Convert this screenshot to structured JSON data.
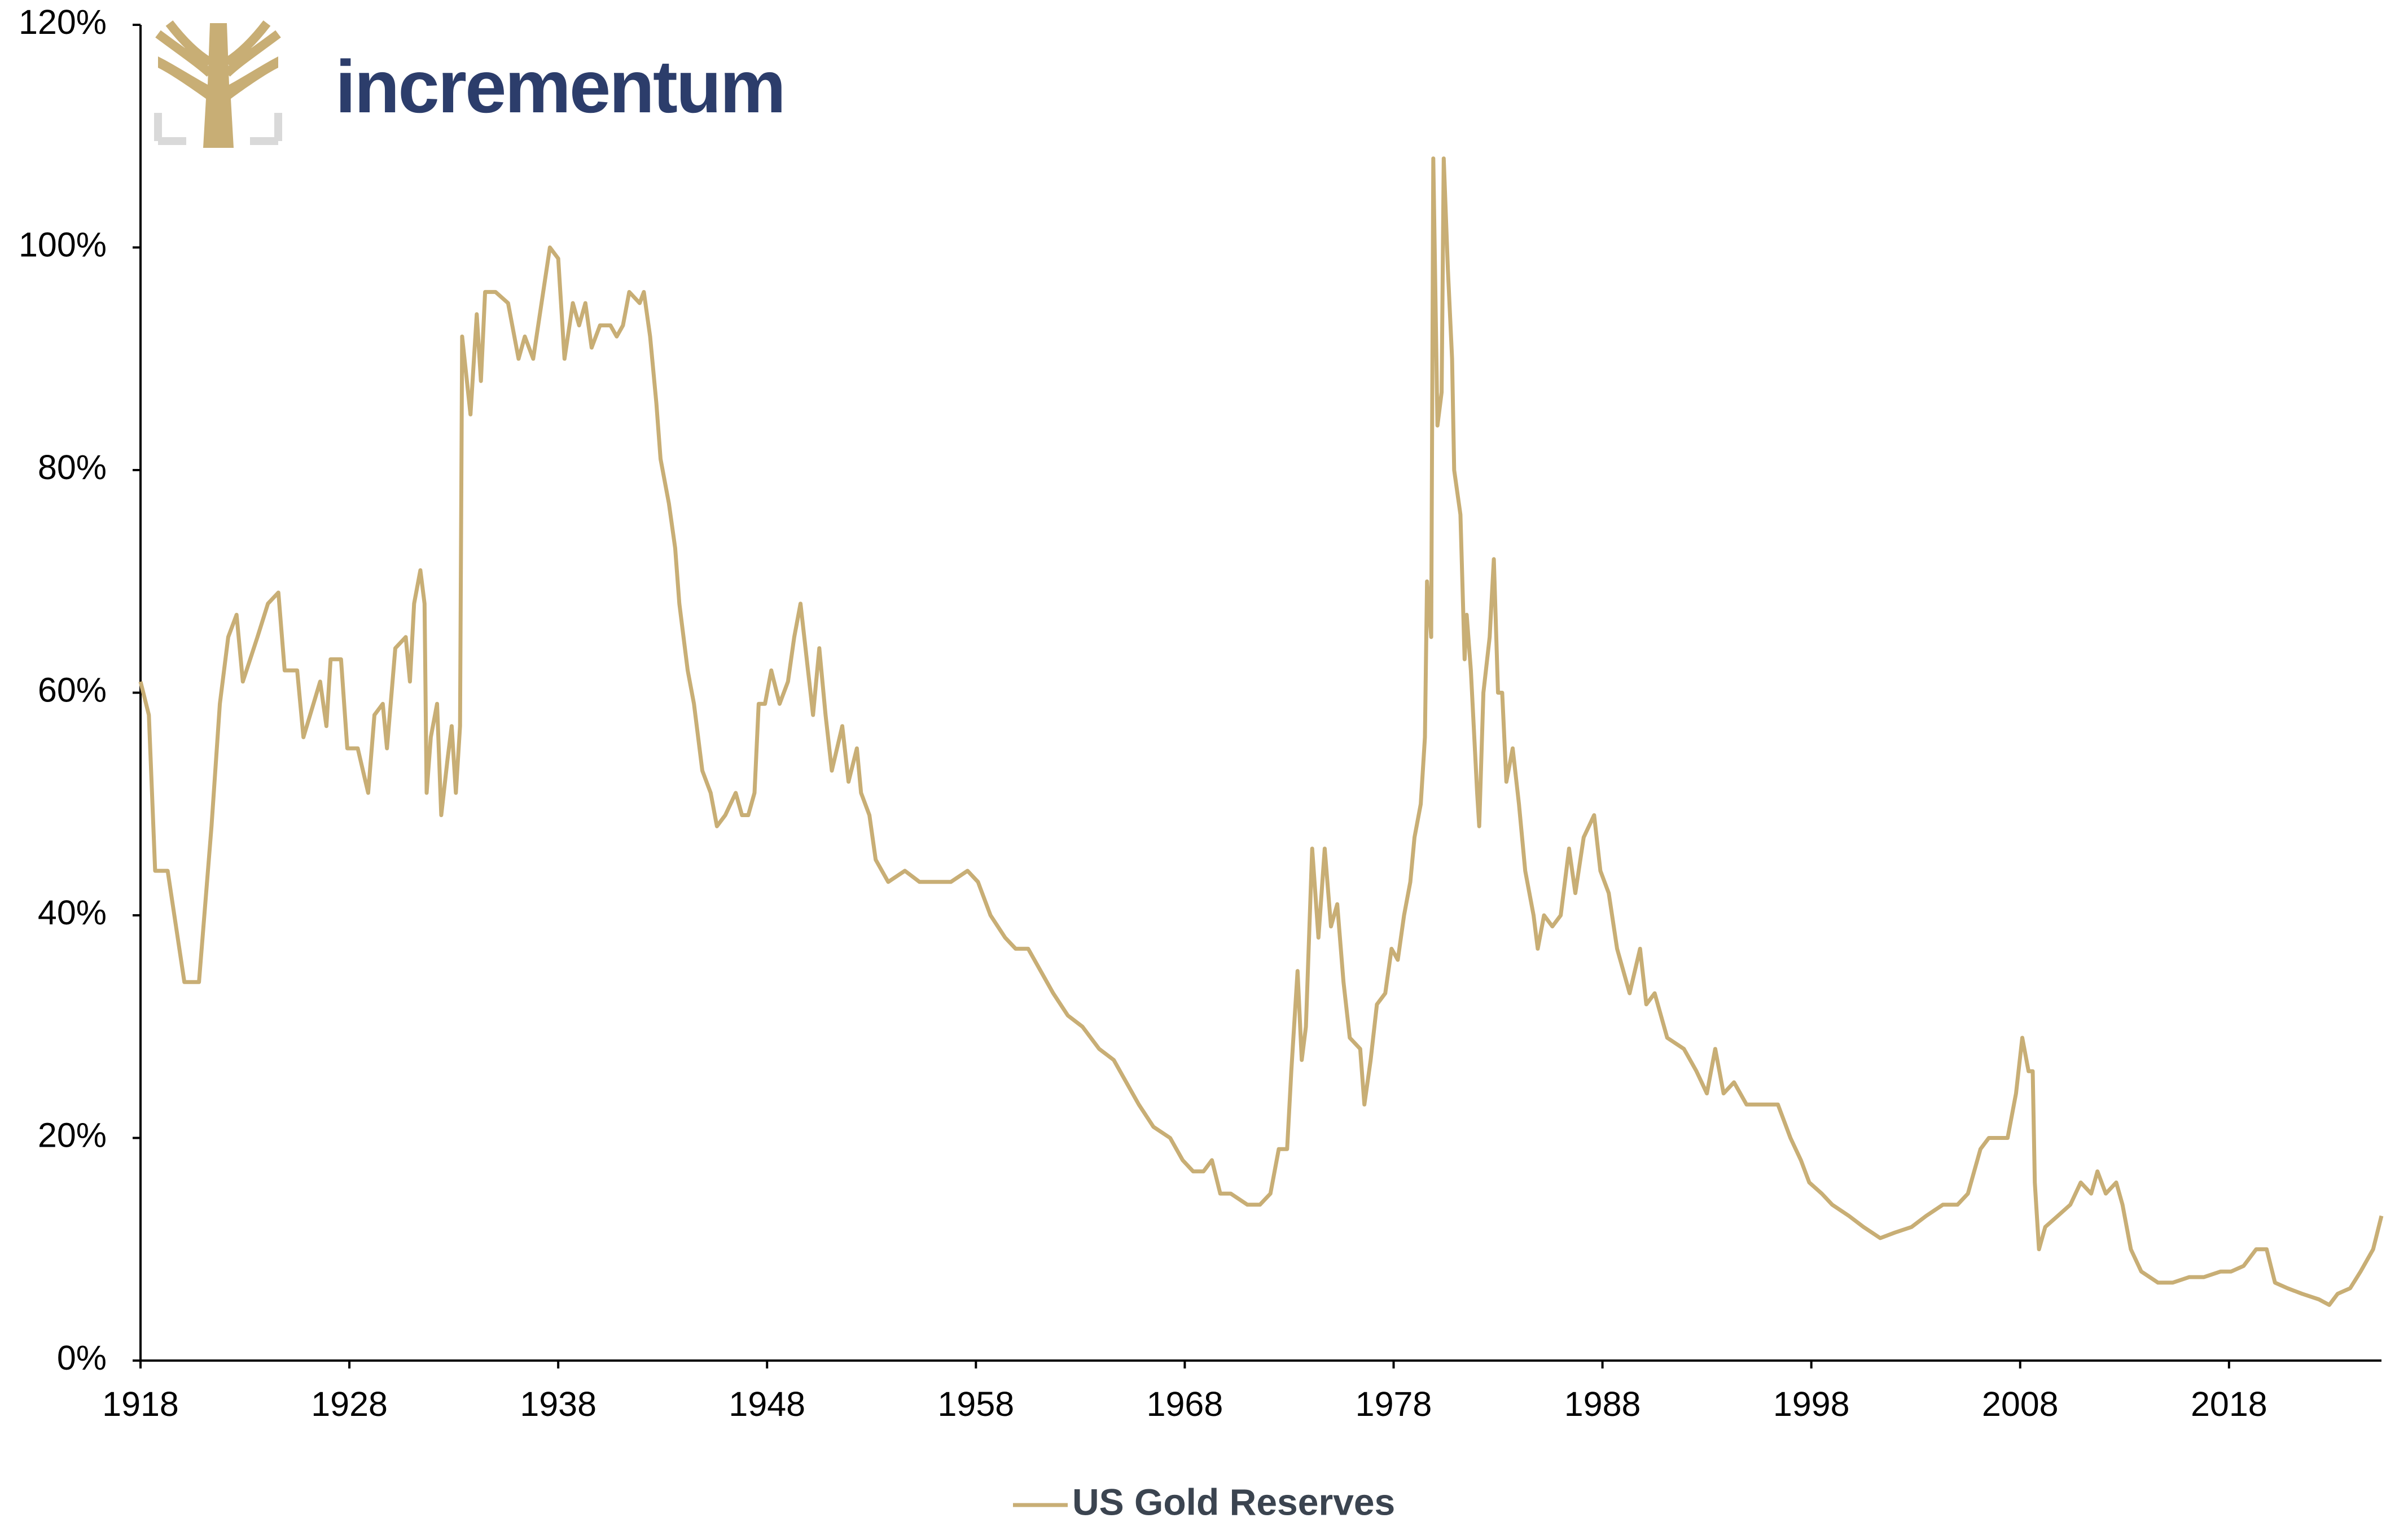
{
  "chart_data": {
    "type": "line",
    "logo_text": "incrementum",
    "x": [
      1918.0,
      1918.4,
      1918.7,
      1919.3,
      1920.1,
      1920.8,
      1921.4,
      1921.8,
      1922.2,
      1922.6,
      1922.9,
      1923.6,
      1924.1,
      1924.6,
      1924.9,
      1925.5,
      1925.8,
      1926.6,
      1926.9,
      1927.1,
      1927.6,
      1927.9,
      1928.4,
      1928.9,
      1929.2,
      1929.6,
      1929.8,
      1930.2,
      1930.7,
      1930.9,
      1931.1,
      1931.4,
      1931.6,
      1931.7,
      1931.9,
      1932.2,
      1932.4,
      1932.7,
      1932.9,
      1933.1,
      1933.3,
      1933.4,
      1933.8,
      1934.1,
      1934.3,
      1934.5,
      1935.0,
      1935.6,
      1936.1,
      1936.4,
      1936.8,
      1937.2,
      1937.6,
      1938.0,
      1938.3,
      1938.7,
      1939.0,
      1939.3,
      1939.6,
      1940.0,
      1940.5,
      1940.8,
      1941.1,
      1941.4,
      1941.9,
      1942.1,
      1942.4,
      1942.7,
      1942.9,
      1943.3,
      1943.6,
      1943.8,
      1944.2,
      1944.5,
      1944.9,
      1945.3,
      1945.6,
      1946.0,
      1946.5,
      1946.8,
      1947.1,
      1947.4,
      1947.6,
      1947.9,
      1948.2,
      1948.6,
      1949.0,
      1949.3,
      1949.6,
      1949.9,
      1950.2,
      1950.5,
      1950.8,
      1951.1,
      1951.6,
      1951.9,
      1952.3,
      1952.5,
      1952.9,
      1953.2,
      1953.8,
      1954.6,
      1955.3,
      1956.1,
      1956.8,
      1957.6,
      1958.1,
      1958.7,
      1959.4,
      1959.9,
      1960.5,
      1961.1,
      1961.7,
      1962.4,
      1963.1,
      1963.9,
      1964.6,
      1965.2,
      1965.8,
      1966.5,
      1967.3,
      1967.9,
      1968.4,
      1968.9,
      1969.3,
      1969.7,
      1970.2,
      1971.0,
      1971.6,
      1972.1,
      1972.5,
      1972.9,
      1973.1,
      1973.4,
      1973.6,
      1973.8,
      1974.1,
      1974.4,
      1974.7,
      1975.0,
      1975.3,
      1975.6,
      1975.9,
      1976.4,
      1976.6,
      1976.9,
      1977.2,
      1977.6,
      1977.9,
      1978.2,
      1978.5,
      1978.8,
      1979.0,
      1979.3,
      1979.5,
      1979.6,
      1979.8,
      1979.9,
      1980.1,
      1980.3,
      1980.4,
      1980.6,
      1980.8,
      1980.9,
      1981.2,
      1981.4,
      1981.5,
      1981.7,
      1982.0,
      1982.1,
      1982.3,
      1982.6,
      1982.8,
      1983.0,
      1983.2,
      1983.4,
      1983.7,
      1984.0,
      1984.3,
      1984.7,
      1984.9,
      1985.2,
      1985.6,
      1986.0,
      1986.4,
      1986.7,
      1987.1,
      1987.6,
      1987.9,
      1988.3,
      1988.7,
      1989.0,
      1989.3,
      1989.8,
      1990.1,
      1990.5,
      1991.1,
      1991.9,
      1992.5,
      1993.0,
      1993.4,
      1993.8,
      1994.3,
      1994.9,
      1995.6,
      1996.4,
      1997.0,
      1997.5,
      1997.9,
      1998.5,
      1999.0,
      1999.8,
      2000.5,
      2001.3,
      2002.0,
      2002.8,
      2003.5,
      2004.3,
      2005.0,
      2005.5,
      2006.1,
      2006.5,
      2007.0,
      2007.4,
      2007.8,
      2008.1,
      2008.4,
      2008.6,
      2008.7,
      2008.9,
      2009.2,
      2009.8,
      2010.4,
      2010.9,
      2011.4,
      2011.7,
      2012.1,
      2012.6,
      2012.9,
      2013.3,
      2013.8,
      2014.6,
      2015.3,
      2016.1,
      2016.8,
      2017.6,
      2018.1,
      2018.7,
      2019.3,
      2019.8,
      2020.2,
      2020.8,
      2021.5,
      2022.3,
      2022.8,
      2023.2,
      2023.8,
      2024.3,
      2024.9,
      2025.3
    ],
    "series": [
      {
        "name": "US Gold Reserves",
        "color": "#c8ae75",
        "values": [
          61,
          58,
          44,
          44,
          34,
          34,
          48,
          59,
          65,
          67,
          61,
          65,
          68,
          69,
          62,
          62,
          56,
          61,
          57,
          63,
          63,
          55,
          55,
          51,
          58,
          59,
          55,
          64,
          65,
          61,
          68,
          71,
          68,
          51,
          56,
          59,
          49,
          54,
          57,
          51,
          57,
          92,
          85,
          94,
          88,
          96,
          96,
          95,
          90,
          92,
          90,
          95,
          100,
          99,
          90,
          95,
          93,
          95,
          91,
          93,
          93,
          92,
          93,
          96,
          95,
          96,
          92,
          86,
          81,
          77,
          73,
          68,
          62,
          59,
          53,
          51,
          48,
          49,
          51,
          49,
          49,
          51,
          59,
          59,
          62,
          59,
          61,
          65,
          68,
          63,
          58,
          64,
          58,
          53,
          57,
          52,
          55,
          51,
          49,
          45,
          43,
          44,
          43,
          43,
          43,
          44,
          43,
          40,
          38,
          37,
          37,
          35,
          33,
          31,
          30,
          28,
          27,
          25,
          23,
          21,
          20,
          18,
          17,
          17,
          18,
          15,
          15,
          14,
          14,
          15,
          19,
          19,
          26,
          35,
          27,
          30,
          46,
          38,
          46,
          39,
          41,
          34,
          29,
          28,
          23,
          27,
          32,
          33,
          37,
          36,
          40,
          43,
          47,
          50,
          56,
          70,
          65,
          108,
          84,
          87,
          108,
          98,
          90,
          80,
          76,
          63,
          67,
          62,
          51,
          48,
          60,
          65,
          72,
          60,
          60,
          52,
          55,
          50,
          44,
          40,
          37,
          40,
          39,
          40,
          46,
          42,
          47,
          49,
          44,
          42,
          37,
          35,
          33,
          37,
          32,
          33,
          29,
          28,
          26,
          24,
          28,
          24,
          25,
          23,
          23,
          23,
          20,
          18,
          16,
          15,
          14,
          13,
          12,
          11,
          11.5,
          12,
          13,
          14,
          14,
          15,
          19,
          20,
          20,
          20,
          24,
          29,
          26,
          26,
          16,
          10,
          12,
          13,
          14,
          16,
          15,
          17,
          15,
          16,
          14,
          10,
          8,
          7,
          7,
          7.5,
          7.5,
          8,
          8,
          8.5,
          10,
          10,
          7,
          6.5,
          6,
          5.5,
          5,
          6,
          6.5,
          8,
          10,
          13
        ]
      }
    ],
    "xlim": [
      1918,
      2025.3
    ],
    "xticks": [
      1918,
      1928,
      1938,
      1948,
      1958,
      1968,
      1978,
      1988,
      1998,
      2008,
      2018
    ],
    "ylim": [
      0,
      120
    ],
    "yticks": [
      {
        "value": 0,
        "label": "0%"
      },
      {
        "value": 20,
        "label": "20%"
      },
      {
        "value": 40,
        "label": "40%"
      },
      {
        "value": 60,
        "label": "60%"
      },
      {
        "value": 80,
        "label": "80%"
      },
      {
        "value": 100,
        "label": "100%"
      },
      {
        "value": 120,
        "label": "120%"
      }
    ],
    "grid": false,
    "legend": "bottom"
  }
}
